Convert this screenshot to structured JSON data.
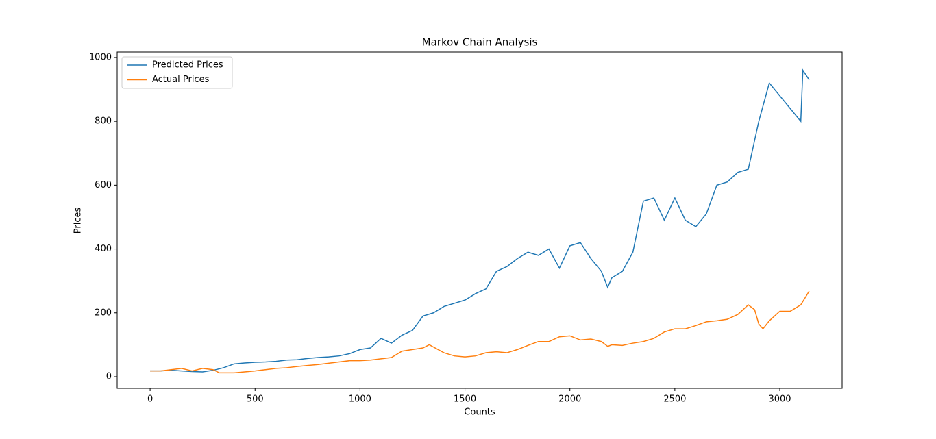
{
  "chart_data": {
    "type": "line",
    "title": "Markov Chain Analysis",
    "x_label": "Counts",
    "y_label": "Prices",
    "xlim": [
      -157,
      3297
    ],
    "ylim": [
      -36.5,
      1017
    ],
    "xticks": [
      0,
      500,
      1000,
      1500,
      2000,
      2500,
      3000
    ],
    "yticks": [
      0,
      200,
      400,
      600,
      800,
      1000
    ],
    "legend": "upper left",
    "series": [
      {
        "name": "Predicted Prices",
        "color": "#1f77b4",
        "x": [
          0,
          50,
          100,
          150,
          200,
          250,
          300,
          350,
          400,
          450,
          500,
          550,
          600,
          650,
          700,
          750,
          800,
          850,
          900,
          950,
          1000,
          1050,
          1100,
          1150,
          1200,
          1250,
          1300,
          1350,
          1400,
          1450,
          1500,
          1550,
          1600,
          1650,
          1700,
          1750,
          1800,
          1850,
          1900,
          1950,
          2000,
          2050,
          2100,
          2150,
          2180,
          2200,
          2250,
          2300,
          2350,
          2400,
          2450,
          2500,
          2550,
          2600,
          2650,
          2700,
          2750,
          2800,
          2850,
          2900,
          2950,
          3000,
          3050,
          3100,
          3110,
          3140
        ],
        "values": [
          18,
          18,
          20,
          18,
          16,
          15,
          20,
          28,
          40,
          43,
          45,
          46,
          48,
          52,
          53,
          57,
          60,
          62,
          65,
          72,
          85,
          90,
          120,
          105,
          130,
          145,
          190,
          200,
          220,
          230,
          240,
          260,
          275,
          330,
          345,
          370,
          390,
          380,
          400,
          340,
          410,
          420,
          370,
          330,
          280,
          310,
          330,
          390,
          550,
          560,
          490,
          560,
          490,
          470,
          510,
          600,
          610,
          640,
          650,
          800,
          920,
          880,
          840,
          800,
          960,
          930
        ]
      },
      {
        "name": "Actual Prices",
        "color": "#ff7f0e",
        "x": [
          0,
          50,
          100,
          150,
          200,
          250,
          300,
          330,
          400,
          450,
          500,
          550,
          600,
          650,
          700,
          750,
          800,
          850,
          900,
          950,
          1000,
          1050,
          1100,
          1150,
          1200,
          1250,
          1300,
          1330,
          1400,
          1450,
          1500,
          1550,
          1600,
          1650,
          1700,
          1750,
          1800,
          1850,
          1900,
          1950,
          2000,
          2050,
          2100,
          2150,
          2180,
          2200,
          2250,
          2300,
          2350,
          2400,
          2450,
          2500,
          2550,
          2600,
          2650,
          2700,
          2750,
          2800,
          2850,
          2880,
          2900,
          2920,
          2950,
          3000,
          3050,
          3100,
          3140
        ],
        "values": [
          18,
          18,
          22,
          26,
          18,
          26,
          22,
          12,
          12,
          15,
          18,
          22,
          26,
          28,
          32,
          35,
          38,
          42,
          46,
          50,
          50,
          52,
          56,
          60,
          80,
          85,
          90,
          100,
          75,
          65,
          62,
          65,
          75,
          78,
          75,
          85,
          98,
          110,
          110,
          125,
          128,
          115,
          118,
          110,
          95,
          100,
          98,
          105,
          110,
          120,
          140,
          150,
          150,
          160,
          172,
          175,
          180,
          195,
          225,
          210,
          165,
          150,
          175,
          205,
          205,
          225,
          268
        ]
      }
    ]
  }
}
